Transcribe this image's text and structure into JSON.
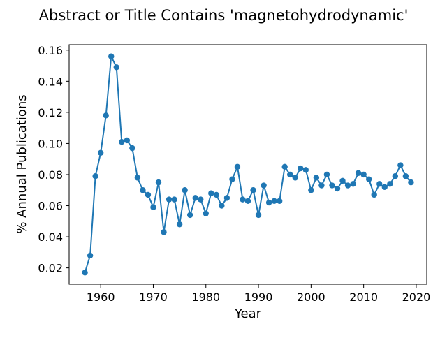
{
  "chart_data": {
    "type": "line",
    "title": "Abstract or Title Contains 'magnetohydrodynamic'",
    "xlabel": "Year",
    "ylabel": "% Annual Publications",
    "xlim": [
      1954,
      2022
    ],
    "ylim": [
      0.0095,
      0.1635
    ],
    "x_ticks": [
      1960,
      1970,
      1980,
      1990,
      2000,
      2010,
      2020
    ],
    "y_ticks": [
      0.02,
      0.04,
      0.06,
      0.08,
      0.1,
      0.12,
      0.14,
      0.16
    ],
    "grid": false,
    "series_color": "#1f77b4",
    "x": [
      1957,
      1958,
      1959,
      1960,
      1961,
      1962,
      1963,
      1964,
      1965,
      1966,
      1967,
      1968,
      1969,
      1970,
      1971,
      1972,
      1973,
      1974,
      1975,
      1976,
      1977,
      1978,
      1979,
      1980,
      1981,
      1982,
      1983,
      1984,
      1985,
      1986,
      1987,
      1988,
      1989,
      1990,
      1991,
      1992,
      1993,
      1994,
      1995,
      1996,
      1997,
      1998,
      1999,
      2000,
      2001,
      2002,
      2003,
      2004,
      2005,
      2006,
      2007,
      2008,
      2009,
      2010,
      2011,
      2012,
      2013,
      2014,
      2015,
      2016,
      2017,
      2018,
      2019
    ],
    "y": [
      0.017,
      0.028,
      0.079,
      0.094,
      0.118,
      0.156,
      0.149,
      0.101,
      0.102,
      0.097,
      0.078,
      0.07,
      0.067,
      0.059,
      0.075,
      0.043,
      0.064,
      0.064,
      0.048,
      0.07,
      0.054,
      0.065,
      0.064,
      0.055,
      0.068,
      0.067,
      0.06,
      0.065,
      0.077,
      0.085,
      0.064,
      0.063,
      0.07,
      0.054,
      0.073,
      0.062,
      0.063,
      0.063,
      0.085,
      0.08,
      0.078,
      0.084,
      0.083,
      0.07,
      0.078,
      0.073,
      0.08,
      0.073,
      0.071,
      0.076,
      0.073,
      0.074,
      0.081,
      0.08,
      0.077,
      0.067,
      0.074,
      0.072,
      0.074,
      0.079,
      0.086,
      0.079,
      0.075
    ]
  }
}
